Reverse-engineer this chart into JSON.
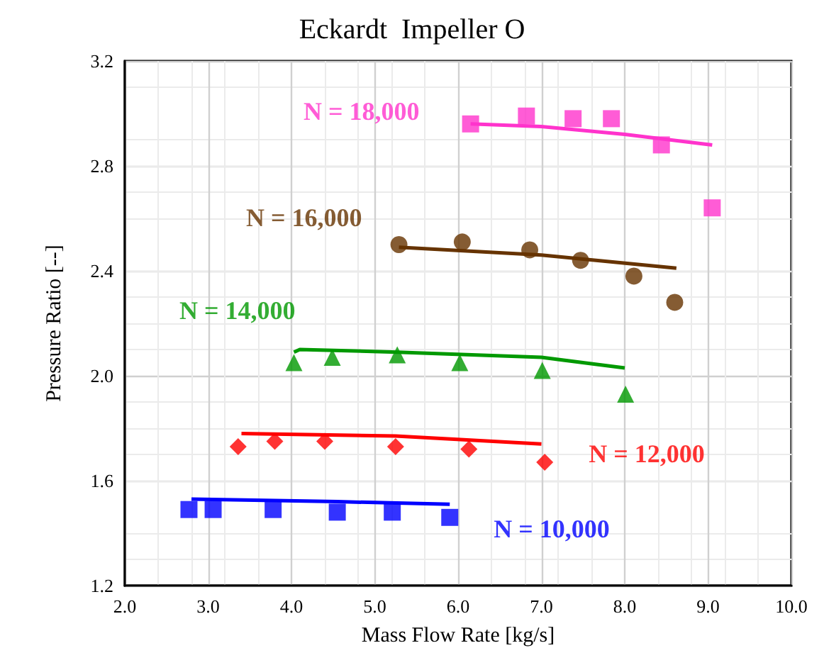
{
  "chart_data": {
    "type": "scatter",
    "title": "Eckardt  Impeller O",
    "xlabel": "Mass Flow Rate [kg/s]",
    "ylabel": "Pressure Ratio [--]",
    "xlim": [
      2,
      10
    ],
    "xticks": [
      {
        "value": 2,
        "label": "2.0"
      },
      {
        "value": 3,
        "label": "3.0"
      },
      {
        "value": 4,
        "label": "4.0"
      },
      {
        "value": 5,
        "label": "5.0"
      },
      {
        "value": 6,
        "label": "6.0"
      },
      {
        "value": 7,
        "label": "7.0"
      },
      {
        "value": 8,
        "label": "8.0"
      },
      {
        "value": 9,
        "label": "9.0"
      },
      {
        "value": 10,
        "label": "10.0"
      }
    ],
    "ylim": [
      1.2,
      3.2
    ],
    "yticks": [
      1.2,
      1.6,
      {
        "value": 2,
        "label": "2.0"
      },
      2.4,
      2.8,
      3.2
    ],
    "grid": true,
    "legend": false,
    "series": [
      {
        "name": "N = 10,000",
        "color": "#0000ff",
        "marker": "square",
        "x": [
          2.77,
          3.06,
          3.78,
          4.55,
          5.21,
          5.9
        ],
        "values": [
          1.49,
          1.49,
          1.49,
          1.48,
          1.48,
          1.46
        ]
      },
      {
        "name": "N = 12,000",
        "color": "#ff0000",
        "marker": "diamond",
        "x": [
          3.36,
          3.8,
          4.4,
          5.25,
          6.13,
          7.04
        ],
        "values": [
          1.73,
          1.75,
          1.75,
          1.73,
          1.72,
          1.67
        ]
      },
      {
        "name": "N = 14,000",
        "color": "#009900",
        "marker": "triangle",
        "x": [
          4.03,
          4.49,
          5.27,
          6.02,
          7.01,
          8.01
        ],
        "values": [
          2.05,
          2.07,
          2.08,
          2.05,
          2.02,
          1.93
        ]
      },
      {
        "name": "N = 16,000",
        "color": "#663300",
        "marker": "circle",
        "x": [
          5.29,
          6.05,
          6.86,
          7.47,
          8.11,
          8.6
        ],
        "values": [
          2.5,
          2.51,
          2.48,
          2.44,
          2.38,
          2.28
        ]
      },
      {
        "name": "N = 18,000",
        "color": "#ff33cc",
        "marker": "square",
        "x": [
          6.15,
          6.82,
          7.38,
          7.84,
          8.44,
          9.05
        ],
        "values": [
          2.96,
          2.99,
          2.98,
          2.98,
          2.88,
          2.64
        ]
      },
      {
        "type": "line",
        "color": "#0000ff",
        "marker": "none",
        "x": [
          2.8,
          4.55,
          5.9
        ],
        "values": [
          1.53,
          1.52,
          1.51
        ]
      },
      {
        "type": "line",
        "color": "#ff0000",
        "marker": "none",
        "x": [
          3.4,
          5.25,
          7.0
        ],
        "values": [
          1.78,
          1.77,
          1.74
        ]
      },
      {
        "type": "line",
        "color": "#009900",
        "marker": "none",
        "x": [
          4.03,
          4.1,
          5.27,
          7.0,
          8.0
        ],
        "values": [
          2.09,
          2.1,
          2.09,
          2.07,
          2.03
        ]
      },
      {
        "type": "line",
        "color": "#663300",
        "marker": "none",
        "x": [
          5.29,
          7.0,
          8.62
        ],
        "values": [
          2.49,
          2.46,
          2.41
        ]
      },
      {
        "type": "line",
        "color": "#ff33cc",
        "marker": "none",
        "x": [
          6.15,
          7.0,
          8.0,
          9.05
        ],
        "values": [
          2.96,
          2.95,
          2.92,
          2.88
        ]
      }
    ]
  }
}
